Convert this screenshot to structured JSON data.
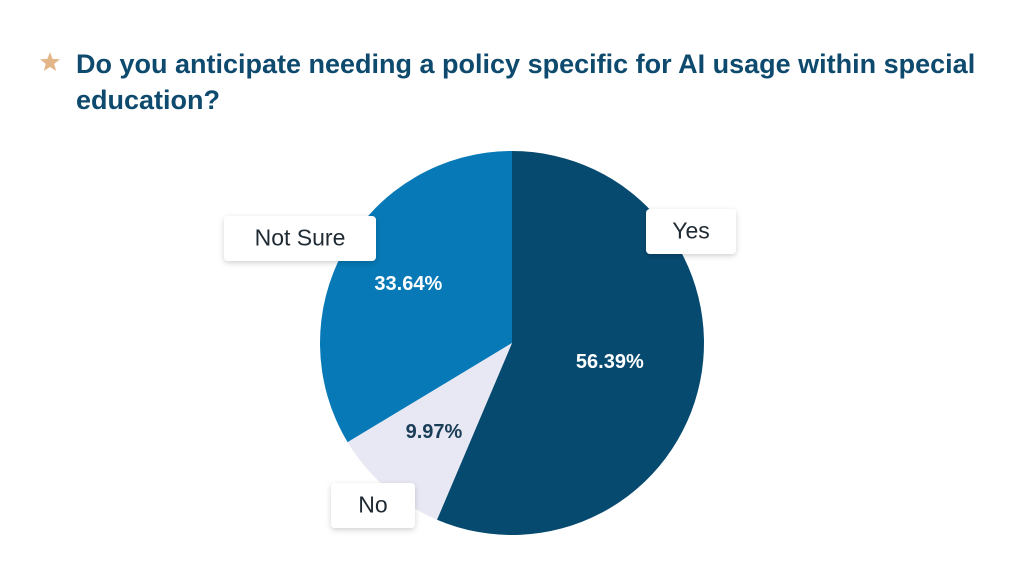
{
  "title": "Do you anticipate needing a policy specific for AI usage within special education?",
  "icon": "star-icon",
  "colors": {
    "accent": "#e3b68a",
    "title": "#0e4a6e"
  },
  "chart_data": {
    "type": "pie",
    "title": "Do you anticipate needing a policy specific for AI usage within special education?",
    "categories": [
      "Yes",
      "No",
      "Not Sure"
    ],
    "values": [
      56.39,
      9.97,
      33.64
    ],
    "data_labels": [
      "56.39%",
      "9.97%",
      "33.64%"
    ],
    "colors": [
      "#074a70",
      "#e8e8f4",
      "#0679b6"
    ],
    "label_colors": [
      "#ffffff",
      "#1a3d57",
      "#ffffff"
    ],
    "legend": "callouts"
  }
}
